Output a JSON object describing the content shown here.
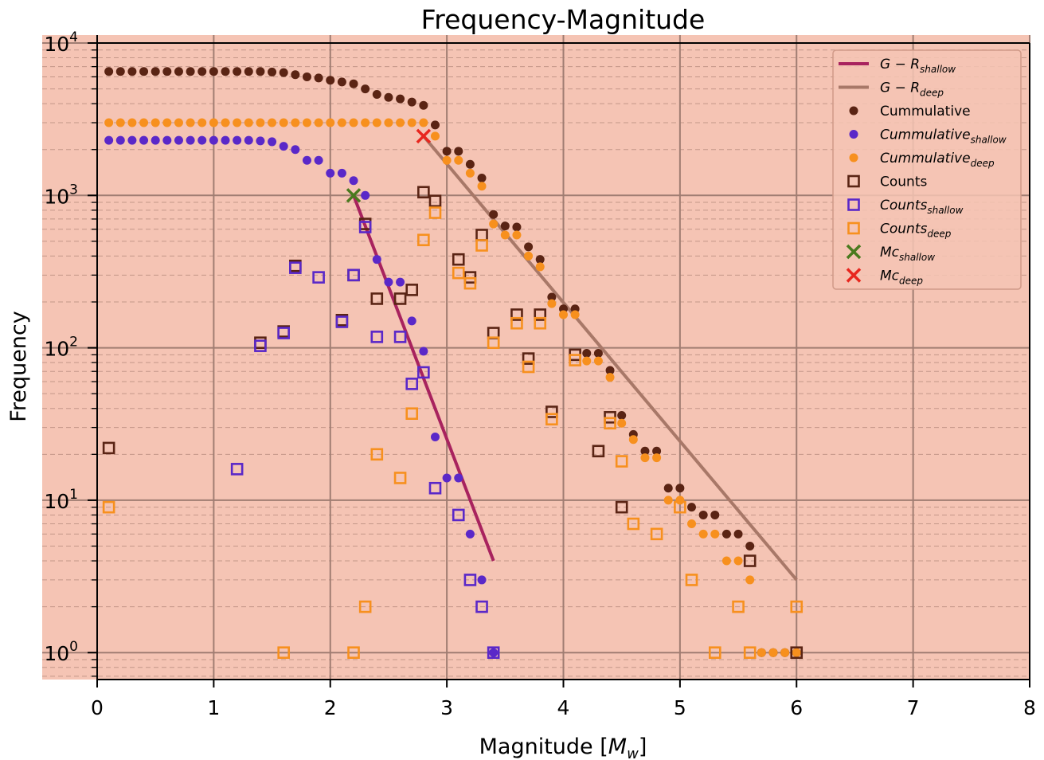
{
  "chart_data": {
    "type": "scatter",
    "title": "Frequency-Magnitude",
    "xlabel": "Magnitude [M_w]",
    "ylabel": "Frequency",
    "xlim": [
      0,
      8
    ],
    "ylim": [
      0.7,
      14000
    ],
    "yscale": "log",
    "grid": true,
    "legend_position": "top-right",
    "background_color": "#f5c4b4",
    "x_ticks": [
      "0",
      "1",
      "2",
      "3",
      "4",
      "5",
      "6",
      "7",
      "8"
    ],
    "y_ticks": [
      {
        "base": "10",
        "exp": "0"
      },
      {
        "base": "10",
        "exp": "1"
      },
      {
        "base": "10",
        "exp": "2"
      },
      {
        "base": "10",
        "exp": "3"
      },
      {
        "base": "10",
        "exp": "4"
      }
    ],
    "series": [
      {
        "name": "Cummulative",
        "name_sub": "",
        "kind": "dot",
        "color": "#5a2414",
        "x": [
          0.1,
          0.2,
          0.3,
          0.4,
          0.5,
          0.6,
          0.7,
          0.8,
          0.9,
          1.0,
          1.1,
          1.2,
          1.3,
          1.4,
          1.5,
          1.6,
          1.7,
          1.8,
          1.9,
          2.0,
          2.1,
          2.2,
          2.3,
          2.4,
          2.5,
          2.6,
          2.7,
          2.8,
          2.9,
          3.0,
          3.1,
          3.2,
          3.3,
          3.4,
          3.5,
          3.6,
          3.7,
          3.8,
          3.9,
          4.0,
          4.1,
          4.2,
          4.3,
          4.4,
          4.5,
          4.6,
          4.7,
          4.8,
          4.9,
          5.0,
          5.1,
          5.2,
          5.3,
          5.4,
          5.5,
          5.6,
          5.7,
          5.8,
          5.9,
          6.0
        ],
        "y": [
          6500,
          6500,
          6500,
          6500,
          6500,
          6500,
          6500,
          6500,
          6500,
          6500,
          6500,
          6500,
          6500,
          6500,
          6450,
          6400,
          6200,
          6000,
          5900,
          5700,
          5550,
          5400,
          5000,
          4600,
          4400,
          4300,
          4100,
          3900,
          2900,
          1950,
          1950,
          1600,
          1300,
          750,
          630,
          620,
          460,
          380,
          215,
          180,
          180,
          92,
          92,
          71,
          36,
          27,
          21,
          21,
          12,
          12,
          9,
          8,
          8,
          6,
          6,
          5,
          1,
          1,
          1,
          1
        ]
      },
      {
        "name": "Cummulative",
        "name_sub": "shallow",
        "kind": "dot",
        "color": "#5a28c8",
        "x": [
          0.1,
          0.2,
          0.3,
          0.4,
          0.5,
          0.6,
          0.7,
          0.8,
          0.9,
          1.0,
          1.1,
          1.2,
          1.3,
          1.4,
          1.5,
          1.6,
          1.7,
          1.8,
          1.9,
          2.0,
          2.1,
          2.2,
          2.3,
          2.4,
          2.5,
          2.6,
          2.7,
          2.8,
          2.9,
          3.0,
          3.1,
          3.2,
          3.3,
          3.4
        ],
        "y": [
          2300,
          2300,
          2300,
          2300,
          2300,
          2300,
          2300,
          2300,
          2300,
          2300,
          2300,
          2300,
          2300,
          2280,
          2250,
          2100,
          2000,
          1700,
          1700,
          1400,
          1400,
          1250,
          1000,
          380,
          270,
          270,
          150,
          95,
          26,
          14,
          14,
          6,
          3,
          1
        ]
      },
      {
        "name": "Cummulative",
        "name_sub": "deep",
        "kind": "dot",
        "color": "#f7901e",
        "x": [
          0.1,
          0.2,
          0.3,
          0.4,
          0.5,
          0.6,
          0.7,
          0.8,
          0.9,
          1.0,
          1.1,
          1.2,
          1.3,
          1.4,
          1.5,
          1.6,
          1.7,
          1.8,
          1.9,
          2.0,
          2.1,
          2.2,
          2.3,
          2.4,
          2.5,
          2.6,
          2.7,
          2.8,
          2.9,
          3.0,
          3.1,
          3.2,
          3.3,
          3.4,
          3.5,
          3.6,
          3.7,
          3.8,
          3.9,
          4.0,
          4.1,
          4.2,
          4.3,
          4.4,
          4.5,
          4.6,
          4.7,
          4.8,
          4.9,
          5.0,
          5.1,
          5.2,
          5.3,
          5.4,
          5.5,
          5.6,
          5.7,
          5.8,
          5.9,
          6.0
        ],
        "y": [
          3000,
          3000,
          3000,
          3000,
          3000,
          3000,
          3000,
          3000,
          3000,
          3000,
          3000,
          3000,
          3000,
          3000,
          3000,
          3000,
          3000,
          3000,
          3000,
          3000,
          3000,
          3000,
          3000,
          3000,
          3000,
          3000,
          3000,
          3000,
          2450,
          1700,
          1700,
          1400,
          1150,
          650,
          550,
          550,
          400,
          340,
          195,
          165,
          165,
          82,
          82,
          64,
          32,
          25,
          19,
          19,
          10,
          10,
          7,
          6,
          6,
          4,
          4,
          3,
          1,
          1,
          1,
          1
        ]
      },
      {
        "name": "Counts",
        "name_sub": "",
        "kind": "square",
        "color": "#5a2414",
        "x": [
          0.1,
          1.4,
          1.6,
          1.7,
          2.1,
          2.2,
          2.3,
          2.4,
          2.6,
          2.7,
          2.8,
          2.9,
          3.1,
          3.2,
          3.3,
          3.4,
          3.6,
          3.7,
          3.8,
          3.9,
          4.1,
          4.3,
          4.4,
          4.5,
          5.6,
          6.0
        ],
        "y": [
          22,
          108,
          128,
          345,
          152,
          300,
          650,
          210,
          210,
          240,
          1050,
          920,
          380,
          290,
          550,
          125,
          165,
          85,
          165,
          38,
          90,
          21,
          35,
          9,
          4,
          1
        ]
      },
      {
        "name": "Counts",
        "name_sub": "shallow",
        "kind": "square",
        "color": "#5a28c8",
        "x": [
          1.2,
          1.4,
          1.6,
          1.7,
          1.9,
          2.1,
          2.2,
          2.3,
          2.4,
          2.6,
          2.7,
          2.8,
          2.9,
          3.1,
          3.2,
          3.3,
          3.4
        ],
        "y": [
          16,
          103,
          125,
          335,
          290,
          148,
          300,
          620,
          118,
          118,
          58,
          69,
          12,
          8,
          3,
          2,
          1
        ]
      },
      {
        "name": "Counts",
        "name_sub": "deep",
        "kind": "square",
        "color": "#f7901e",
        "x": [
          0.1,
          1.6,
          2.2,
          2.3,
          2.4,
          2.6,
          2.7,
          2.8,
          2.9,
          3.1,
          3.2,
          3.3,
          3.4,
          3.6,
          3.7,
          3.8,
          3.9,
          4.1,
          4.4,
          4.5,
          4.6,
          4.8,
          5.0,
          5.1,
          5.3,
          5.5,
          5.6,
          6.0
        ],
        "y": [
          9,
          1,
          1,
          2,
          20,
          14,
          37,
          510,
          770,
          310,
          265,
          470,
          108,
          145,
          75,
          145,
          34,
          83,
          32,
          18,
          7,
          6,
          9,
          3,
          1,
          2,
          1,
          2
        ]
      },
      {
        "name": "Mc",
        "name_sub": "shallow",
        "kind": "cross",
        "color": "#4a7a1e",
        "x": [
          2.2
        ],
        "y": [
          1000
        ]
      },
      {
        "name": "Mc",
        "name_sub": "deep",
        "kind": "cross",
        "color": "#e8261e",
        "x": [
          2.8
        ],
        "y": [
          2450
        ]
      }
    ],
    "lines": [
      {
        "name": "G − R",
        "name_sub": "shallow",
        "color": "#a8235e",
        "x": [
          2.2,
          3.4
        ],
        "y": [
          1000,
          4
        ]
      },
      {
        "name": "G − R",
        "name_sub": "deep",
        "color": "#a87868",
        "x": [
          2.8,
          6.0
        ],
        "y": [
          2450,
          3
        ]
      }
    ]
  }
}
